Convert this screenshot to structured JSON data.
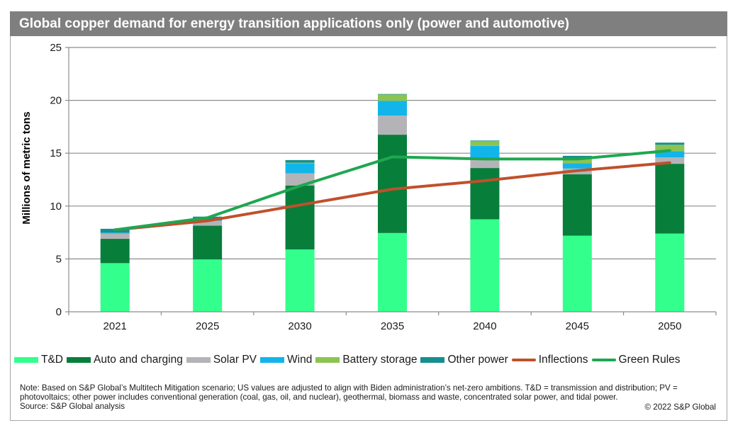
{
  "title": "Global copper demand for energy transition applications only (power and automotive)",
  "colors": {
    "title_bg": "#7f7f7f",
    "gridline": "#8c8c8c",
    "axis": "#8c8c8c"
  },
  "chart_data": {
    "type": "bar",
    "stacked": true,
    "title": "Global copper demand for energy transition applications only (power and automotive)",
    "xlabel": "",
    "ylabel": "Millions of metric tons",
    "ylim": [
      0,
      25
    ],
    "yticks": [
      "0",
      "5",
      "10",
      "15",
      "20",
      "25"
    ],
    "grid": true,
    "legend_position": "bottom",
    "categories": [
      "2021",
      "2025",
      "2030",
      "2035",
      "2040",
      "2045",
      "2050"
    ],
    "series": [
      {
        "name": "T&D",
        "type": "bar",
        "color": "#33ff8c",
        "values": [
          4.6,
          4.95,
          5.9,
          7.45,
          8.75,
          7.2,
          7.4
        ]
      },
      {
        "name": "Auto and charging",
        "type": "bar",
        "color": "#087e3b",
        "values": [
          2.3,
          3.2,
          6.05,
          9.3,
          4.85,
          5.8,
          6.6
        ]
      },
      {
        "name": "Solar PV",
        "type": "bar",
        "color": "#b4b4b8",
        "values": [
          0.5,
          0.45,
          1.15,
          1.8,
          0.75,
          0.55,
          0.6
        ]
      },
      {
        "name": "Wind",
        "type": "bar",
        "color": "#12b5ea",
        "values": [
          0.1,
          0.05,
          0.95,
          1.4,
          1.35,
          0.5,
          0.6
        ]
      },
      {
        "name": "Battery storage",
        "type": "bar",
        "color": "#8cc451",
        "values": [
          0.0,
          0.0,
          0.05,
          0.6,
          0.45,
          0.45,
          0.6
        ]
      },
      {
        "name": "Other power",
        "type": "bar",
        "color": "#168e8e",
        "values": [
          0.35,
          0.35,
          0.25,
          0.05,
          0.05,
          0.25,
          0.2
        ]
      },
      {
        "name": "Inflections",
        "type": "line",
        "color": "#c0502b",
        "values": [
          7.75,
          8.6,
          10.1,
          11.6,
          12.4,
          13.35,
          14.1
        ]
      },
      {
        "name": "Green Rules",
        "type": "line",
        "color": "#1fa750",
        "values": [
          7.75,
          8.9,
          11.9,
          14.65,
          14.45,
          14.45,
          15.25
        ]
      }
    ]
  },
  "notes": {
    "line1": "Note: Based on S&P Global’s Multitech Mitigation scenario; US values are adjusted to align with Biden administration’s net-zero ambitions. T&D = transmission and distribution; PV =",
    "line2": "photovoltaics; other power includes conventional generation (coal, gas, oil, and nuclear), geothermal, biomass and waste, concentrated solar power, and tidal power.",
    "source": "Source: S&P Global analysis",
    "copyright": "© 2022 S&P Global"
  }
}
